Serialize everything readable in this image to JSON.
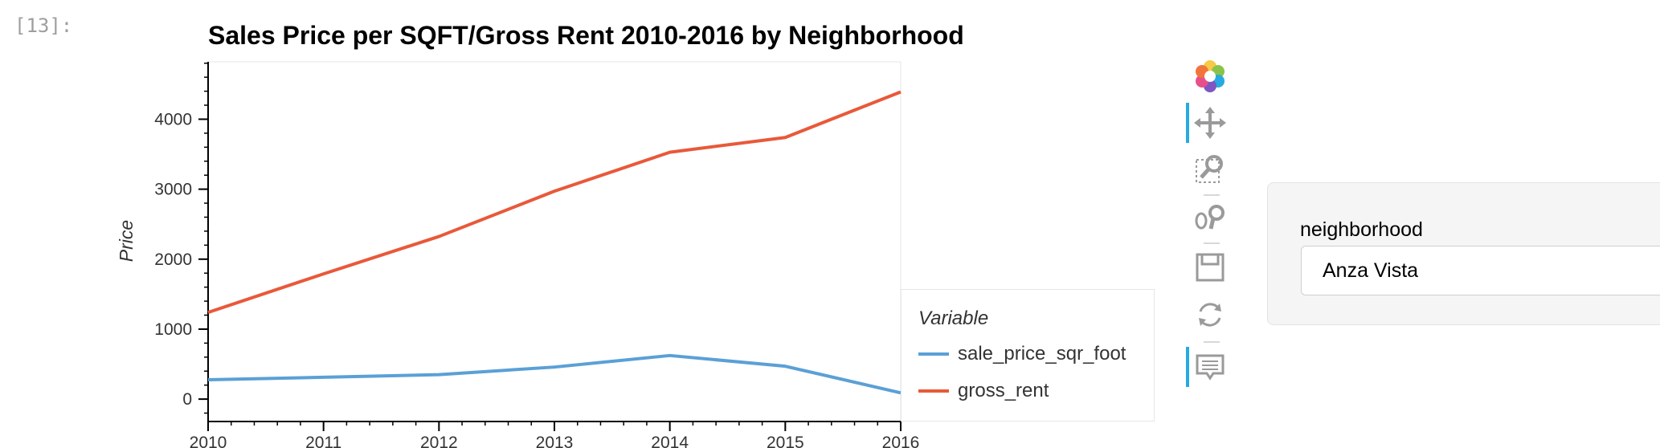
{
  "cell": {
    "prompt": "[13]:"
  },
  "chart_data": {
    "type": "line",
    "title": "Sales Price per SQFT/Gross Rent 2010-2016 by Neighborhood",
    "xlabel": "",
    "ylabel": "Price",
    "x": [
      2010,
      2011,
      2012,
      2013,
      2014,
      2015,
      2016
    ],
    "series": [
      {
        "name": "sale_price_sqr_foot",
        "color": "#5aa0d6",
        "values": [
          276,
          312,
          350,
          458,
          623,
          470,
          89
        ]
      },
      {
        "name": "gross_rent",
        "color": "#e8593a",
        "values": [
          1239,
          1790,
          2324,
          2971,
          3528,
          3739,
          4390
        ]
      }
    ],
    "xlim": [
      2010,
      2016
    ],
    "ylim": [
      -320,
      4820
    ],
    "yticks": [
      0,
      1000,
      2000,
      3000,
      4000
    ],
    "xticks": [
      2010,
      2011,
      2012,
      2013,
      2014,
      2015,
      2016
    ],
    "legend": {
      "title": "Variable",
      "position": "right"
    },
    "grid": false
  },
  "toolbar": {
    "tools": [
      {
        "name": "bokeh-logo-icon",
        "active": false
      },
      {
        "name": "pan-icon",
        "active": true
      },
      {
        "name": "box-zoom-icon",
        "active": false
      },
      {
        "name": "wheel-zoom-icon",
        "active": false
      },
      {
        "name": "save-icon",
        "active": false
      },
      {
        "name": "reset-icon",
        "active": false
      },
      {
        "name": "hover-icon",
        "active": true
      }
    ]
  },
  "widget": {
    "label": "neighborhood",
    "selected": "Anza Vista"
  }
}
